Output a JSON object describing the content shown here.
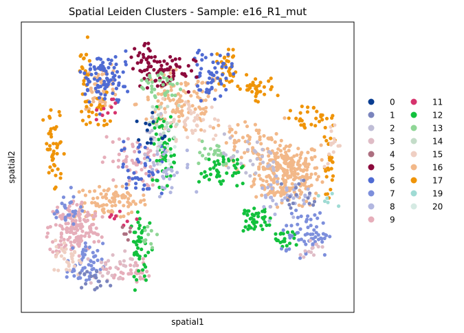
{
  "chart_data": {
    "type": "scatter",
    "title": "Spatial Leiden Clusters - Sample: e16_R1_mut",
    "xlabel": "spatial1",
    "ylabel": "spatial2",
    "ticks_visible": false,
    "grid": false,
    "legend_position": "right-outside",
    "xlim": [
      0,
      100
    ],
    "ylim": [
      0,
      100
    ],
    "series": [
      {
        "name": "0",
        "color": "#0a3d91"
      },
      {
        "name": "1",
        "color": "#7a84bd"
      },
      {
        "name": "2",
        "color": "#bfbdd6"
      },
      {
        "name": "3",
        "color": "#dfbcc6"
      },
      {
        "name": "4",
        "color": "#ad6f80"
      },
      {
        "name": "5",
        "color": "#8c0a3c"
      },
      {
        "name": "6",
        "color": "#4f6bd3"
      },
      {
        "name": "7",
        "color": "#7d8fdc"
      },
      {
        "name": "8",
        "color": "#b2b7e0"
      },
      {
        "name": "9",
        "color": "#e6aeba"
      },
      {
        "name": "11",
        "color": "#d6336d"
      },
      {
        "name": "12",
        "color": "#12c13d"
      },
      {
        "name": "13",
        "color": "#8fd696"
      },
      {
        "name": "14",
        "color": "#c3dcc8"
      },
      {
        "name": "15",
        "color": "#efcfc3"
      },
      {
        "name": "16",
        "color": "#f2b889"
      },
      {
        "name": "17",
        "color": "#ef9408"
      },
      {
        "name": "19",
        "color": "#9fdbd4"
      },
      {
        "name": "20",
        "color": "#d5eae3"
      }
    ],
    "regions": [
      {
        "cluster": "16",
        "cx": 80,
        "cy": 48,
        "rx": 9,
        "ry": 10,
        "n": 260
      },
      {
        "cluster": "16",
        "cx": 27,
        "cy": 38,
        "rx": 10,
        "ry": 5,
        "n": 90
      },
      {
        "cluster": "16",
        "cx": 48,
        "cy": 72,
        "rx": 12,
        "ry": 10,
        "n": 110
      },
      {
        "cluster": "16",
        "cx": 24,
        "cy": 78,
        "rx": 5,
        "ry": 7,
        "n": 60
      },
      {
        "cluster": "16",
        "cx": 68,
        "cy": 58,
        "rx": 10,
        "ry": 8,
        "n": 60
      },
      {
        "cluster": "9",
        "cx": 16,
        "cy": 29,
        "rx": 7,
        "ry": 9,
        "n": 170
      },
      {
        "cluster": "9",
        "cx": 33,
        "cy": 52,
        "rx": 8,
        "ry": 8,
        "n": 60
      },
      {
        "cluster": "9",
        "cx": 32,
        "cy": 14,
        "rx": 6,
        "ry": 4,
        "n": 35
      },
      {
        "cluster": "17",
        "cx": 19,
        "cy": 83,
        "rx": 2,
        "ry": 10,
        "n": 20
      },
      {
        "cluster": "17",
        "cx": 10,
        "cy": 55,
        "rx": 3,
        "ry": 14,
        "n": 45
      },
      {
        "cluster": "17",
        "cx": 22,
        "cy": 69,
        "rx": 4,
        "ry": 6,
        "n": 25
      },
      {
        "cluster": "17",
        "cx": 62,
        "cy": 85,
        "rx": 3,
        "ry": 6,
        "n": 30
      },
      {
        "cluster": "17",
        "cx": 70,
        "cy": 77,
        "rx": 6,
        "ry": 4,
        "n": 35
      },
      {
        "cluster": "17",
        "cx": 87,
        "cy": 67,
        "rx": 7,
        "ry": 4,
        "n": 30
      },
      {
        "cluster": "17",
        "cx": 93,
        "cy": 50,
        "rx": 2,
        "ry": 12,
        "n": 25
      },
      {
        "cluster": "12",
        "cx": 43,
        "cy": 57,
        "rx": 3,
        "ry": 12,
        "n": 60
      },
      {
        "cluster": "12",
        "cx": 36,
        "cy": 22,
        "rx": 3,
        "ry": 12,
        "n": 45
      },
      {
        "cluster": "12",
        "cx": 60,
        "cy": 49,
        "rx": 6,
        "ry": 6,
        "n": 45
      },
      {
        "cluster": "12",
        "cx": 70,
        "cy": 32,
        "rx": 5,
        "ry": 5,
        "n": 40
      },
      {
        "cluster": "12",
        "cx": 79,
        "cy": 25,
        "rx": 4,
        "ry": 3,
        "n": 20
      },
      {
        "cluster": "6",
        "cx": 25,
        "cy": 80,
        "rx": 7,
        "ry": 10,
        "n": 90
      },
      {
        "cluster": "6",
        "cx": 57,
        "cy": 82,
        "rx": 6,
        "ry": 8,
        "n": 55
      },
      {
        "cluster": "6",
        "cx": 36,
        "cy": 50,
        "rx": 6,
        "ry": 9,
        "n": 40
      },
      {
        "cluster": "5",
        "cx": 42,
        "cy": 83,
        "rx": 9,
        "ry": 6,
        "n": 65
      },
      {
        "cluster": "5",
        "cx": 36,
        "cy": 88,
        "rx": 3,
        "ry": 4,
        "n": 20
      },
      {
        "cluster": "7",
        "cx": 19,
        "cy": 16,
        "rx": 5,
        "ry": 7,
        "n": 55
      },
      {
        "cluster": "7",
        "cx": 86,
        "cy": 27,
        "rx": 7,
        "ry": 7,
        "n": 60
      },
      {
        "cluster": "7",
        "cx": 14,
        "cy": 36,
        "rx": 4,
        "ry": 6,
        "n": 25
      },
      {
        "cluster": "13",
        "cx": 42,
        "cy": 78,
        "rx": 6,
        "ry": 6,
        "n": 35
      },
      {
        "cluster": "13",
        "cx": 57,
        "cy": 56,
        "rx": 6,
        "ry": 5,
        "n": 20
      },
      {
        "cluster": "13",
        "cx": 38,
        "cy": 26,
        "rx": 3,
        "ry": 6,
        "n": 10
      },
      {
        "cluster": "15",
        "cx": 52,
        "cy": 65,
        "rx": 9,
        "ry": 8,
        "n": 45
      },
      {
        "cluster": "15",
        "cx": 14,
        "cy": 19,
        "rx": 4,
        "ry": 5,
        "n": 30
      },
      {
        "cluster": "15",
        "cx": 94,
        "cy": 57,
        "rx": 3,
        "ry": 8,
        "n": 15
      },
      {
        "cluster": "8",
        "cx": 79,
        "cy": 41,
        "rx": 8,
        "ry": 8,
        "n": 35
      },
      {
        "cluster": "8",
        "cx": 45,
        "cy": 49,
        "rx": 8,
        "ry": 8,
        "n": 25
      },
      {
        "cluster": "2",
        "cx": 68,
        "cy": 53,
        "rx": 9,
        "ry": 7,
        "n": 30
      },
      {
        "cluster": "2",
        "cx": 40,
        "cy": 60,
        "rx": 6,
        "ry": 10,
        "n": 20
      },
      {
        "cluster": "3",
        "cx": 27,
        "cy": 16,
        "rx": 6,
        "ry": 6,
        "n": 25
      },
      {
        "cluster": "3",
        "cx": 87,
        "cy": 22,
        "rx": 4,
        "ry": 3,
        "n": 12
      },
      {
        "cluster": "1",
        "cx": 21,
        "cy": 11,
        "rx": 5,
        "ry": 3,
        "n": 15
      },
      {
        "cluster": "1",
        "cx": 84,
        "cy": 40,
        "rx": 6,
        "ry": 6,
        "n": 15
      },
      {
        "cluster": "14",
        "cx": 43,
        "cy": 66,
        "rx": 5,
        "ry": 7,
        "n": 15
      },
      {
        "cluster": "20",
        "cx": 42,
        "cy": 56,
        "rx": 4,
        "ry": 6,
        "n": 12
      },
      {
        "cluster": "11",
        "cx": 27,
        "cy": 70,
        "rx": 4,
        "ry": 4,
        "n": 10
      },
      {
        "cluster": "11",
        "cx": 30,
        "cy": 32,
        "rx": 5,
        "ry": 5,
        "n": 8
      },
      {
        "cluster": "0",
        "cx": 38,
        "cy": 62,
        "rx": 5,
        "ry": 6,
        "n": 12
      },
      {
        "cluster": "4",
        "cx": 31,
        "cy": 29,
        "rx": 4,
        "ry": 4,
        "n": 6
      },
      {
        "cluster": "19",
        "cx": 92,
        "cy": 38,
        "rx": 3,
        "ry": 4,
        "n": 6
      }
    ]
  }
}
